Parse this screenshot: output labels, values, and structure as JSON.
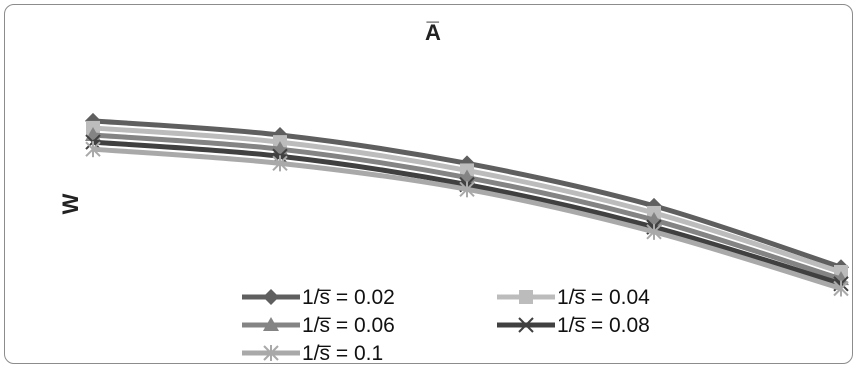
{
  "chart_data": {
    "type": "line",
    "title": "",
    "xlabel": "A̅",
    "ylabel": "W",
    "x_ticks_shown": false,
    "y_ticks_shown": false,
    "grid": false,
    "legend_position": "bottom",
    "x": [
      1,
      2,
      3,
      4,
      5
    ],
    "series": [
      {
        "name": "1/s̅ = 0.02",
        "color": "#5f5f5f",
        "marker": "diamond",
        "values": [
          1.0,
          0.94,
          0.82,
          0.64,
          0.38
        ]
      },
      {
        "name": "1/s̅ = 0.04",
        "color": "#bcbcbc",
        "marker": "square",
        "values": [
          0.97,
          0.91,
          0.79,
          0.61,
          0.36
        ]
      },
      {
        "name": "1/s̅ = 0.06",
        "color": "#848484",
        "marker": "triangle",
        "values": [
          0.94,
          0.88,
          0.76,
          0.58,
          0.33
        ]
      },
      {
        "name": "1/s̅ = 0.08",
        "color": "#404040",
        "marker": "x",
        "values": [
          0.91,
          0.85,
          0.73,
          0.55,
          0.31
        ]
      },
      {
        "name": "1/s̅ = 0.1",
        "color": "#a9a9a9",
        "marker": "asterisk",
        "values": [
          0.88,
          0.82,
          0.71,
          0.53,
          0.29
        ]
      }
    ],
    "ylim": [
      0,
      1.3
    ]
  }
}
